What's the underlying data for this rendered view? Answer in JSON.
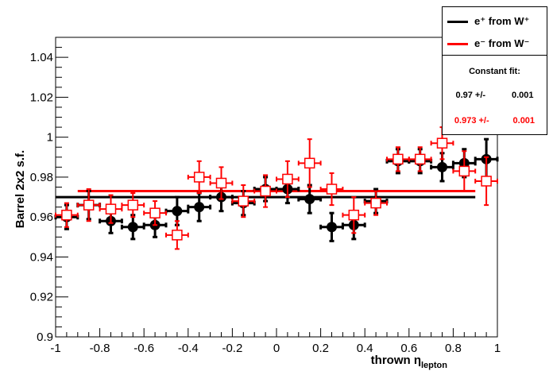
{
  "chart_data": {
    "type": "scatter",
    "title": "",
    "xlabel": "thrown η",
    "xlabel_sub": "lepton",
    "ylabel": "Barrel 2x2 s.f.",
    "xlim": [
      -1,
      1
    ],
    "ylim": [
      0.9,
      1.05
    ],
    "xticks": [
      "-1",
      "-0.8",
      "-0.6",
      "-0.4",
      "-0.2",
      "0",
      "0.2",
      "0.4",
      "0.6",
      "0.8",
      "1"
    ],
    "yticks": [
      "0.9",
      "0.92",
      "0.94",
      "0.96",
      "0.98",
      "1",
      "1.02",
      "1.04"
    ],
    "legend_position": "top-right",
    "x_error": 0.05,
    "series": [
      {
        "name": "e+ from W+",
        "color": "#000000",
        "marker": "filled-circle",
        "x": [
          -0.95,
          -0.85,
          -0.75,
          -0.65,
          -0.55,
          -0.45,
          -0.35,
          -0.25,
          -0.15,
          -0.05,
          0.05,
          0.15,
          0.25,
          0.35,
          0.45,
          0.55,
          0.65,
          0.75,
          0.85,
          0.95
        ],
        "y": [
          0.96,
          0.966,
          0.958,
          0.955,
          0.956,
          0.963,
          0.965,
          0.97,
          0.967,
          0.974,
          0.974,
          0.969,
          0.955,
          0.956,
          0.968,
          0.988,
          0.988,
          0.985,
          0.987,
          0.989
        ],
        "yerr": [
          0.006,
          0.007,
          0.006,
          0.006,
          0.006,
          0.007,
          0.007,
          0.007,
          0.006,
          0.006,
          0.007,
          0.007,
          0.007,
          0.007,
          0.006,
          0.006,
          0.006,
          0.007,
          0.007,
          0.01
        ],
        "fit_value": 0.97,
        "fit_range": [
          -1,
          0.9
        ]
      },
      {
        "name": "e- from W-",
        "color": "#ff0000",
        "marker": "open-square",
        "x": [
          -0.95,
          -0.85,
          -0.75,
          -0.65,
          -0.55,
          -0.45,
          -0.35,
          -0.25,
          -0.15,
          -0.05,
          0.05,
          0.15,
          0.25,
          0.35,
          0.45,
          0.55,
          0.65,
          0.75,
          0.85,
          0.95
        ],
        "y": [
          0.961,
          0.966,
          0.964,
          0.966,
          0.962,
          0.951,
          0.98,
          0.977,
          0.968,
          0.973,
          0.979,
          0.987,
          0.974,
          0.961,
          0.967,
          0.989,
          0.989,
          0.997,
          0.983,
          0.978
        ],
        "yerr": [
          0.006,
          0.008,
          0.007,
          0.006,
          0.006,
          0.007,
          0.008,
          0.008,
          0.008,
          0.008,
          0.009,
          0.012,
          0.008,
          0.009,
          0.006,
          0.006,
          0.006,
          0.008,
          0.01,
          0.012
        ],
        "fit_value": 0.973,
        "fit_range": [
          -0.9,
          0.9
        ]
      }
    ]
  },
  "legend": {
    "entries": [
      {
        "label": "e⁺ from W⁺",
        "color": "#000000"
      },
      {
        "label": "e⁻ from W⁻",
        "color": "#ff0000"
      }
    ]
  },
  "fit_box": {
    "title": "Constant fit:",
    "rows": [
      {
        "value": "0.97 +/-",
        "error": "0.001",
        "color": "#000000"
      },
      {
        "value": "0.973 +/-",
        "error": "0.001",
        "color": "#ff0000"
      }
    ]
  }
}
